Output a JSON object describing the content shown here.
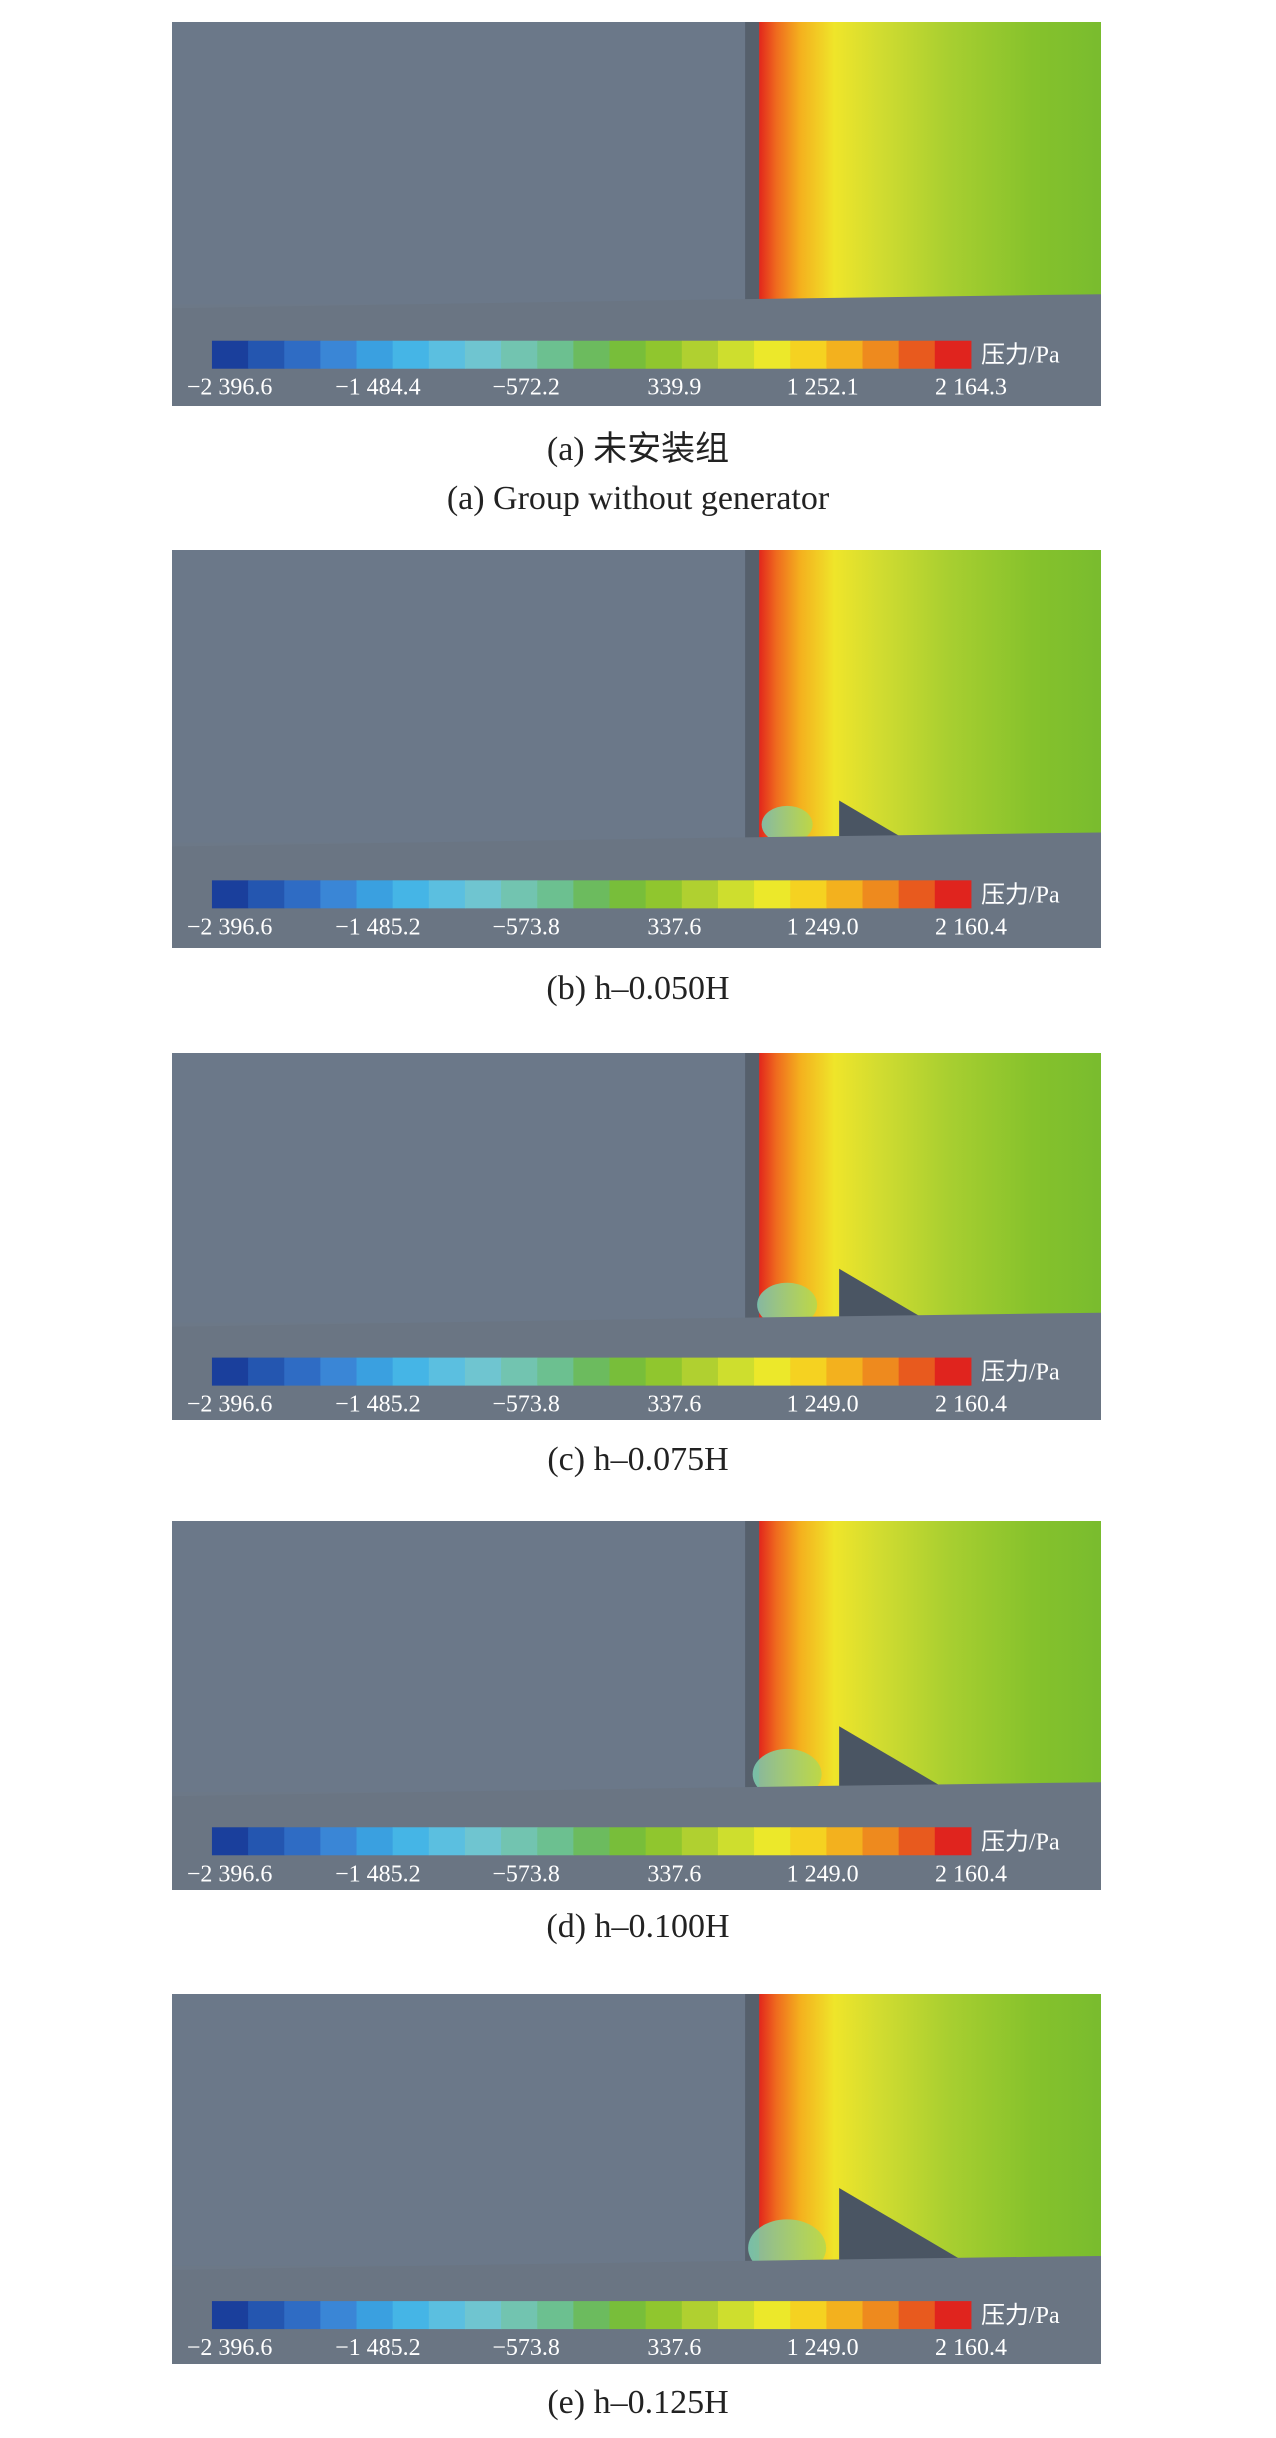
{
  "panels": [
    {
      "colorbar_title": "压力/Pa",
      "colorbar_labels": [
        "−2 396.6",
        "−1 484.4",
        "−572.2",
        "339.9",
        "1 252.1",
        "2 164.3"
      ],
      "caption": "(a) 未安装组",
      "caption_en": "(a) Group without generator"
    },
    {
      "colorbar_title": "压力/Pa",
      "colorbar_labels": [
        "−2 396.6",
        "−1 485.2",
        "−573.8",
        "337.6",
        "1 249.0",
        "2 160.4"
      ],
      "caption": "(b) h‒0.050H"
    },
    {
      "colorbar_title": "压力/Pa",
      "colorbar_labels": [
        "−2 396.6",
        "−1 485.2",
        "−573.8",
        "337.6",
        "1 249.0",
        "2 160.4"
      ],
      "caption": "(c) h‒0.075H"
    },
    {
      "colorbar_title": "压力/Pa",
      "colorbar_labels": [
        "−2 396.6",
        "−1 485.2",
        "−573.8",
        "337.6",
        "1 249.0",
        "2 160.4"
      ],
      "caption": "(d) h‒0.100H"
    },
    {
      "colorbar_title": "压力/Pa",
      "colorbar_labels": [
        "−2 396.6",
        "−1 485.2",
        "−573.8",
        "337.6",
        "1 249.0",
        "2 160.4"
      ],
      "caption": "(e) h‒0.125H"
    }
  ]
}
